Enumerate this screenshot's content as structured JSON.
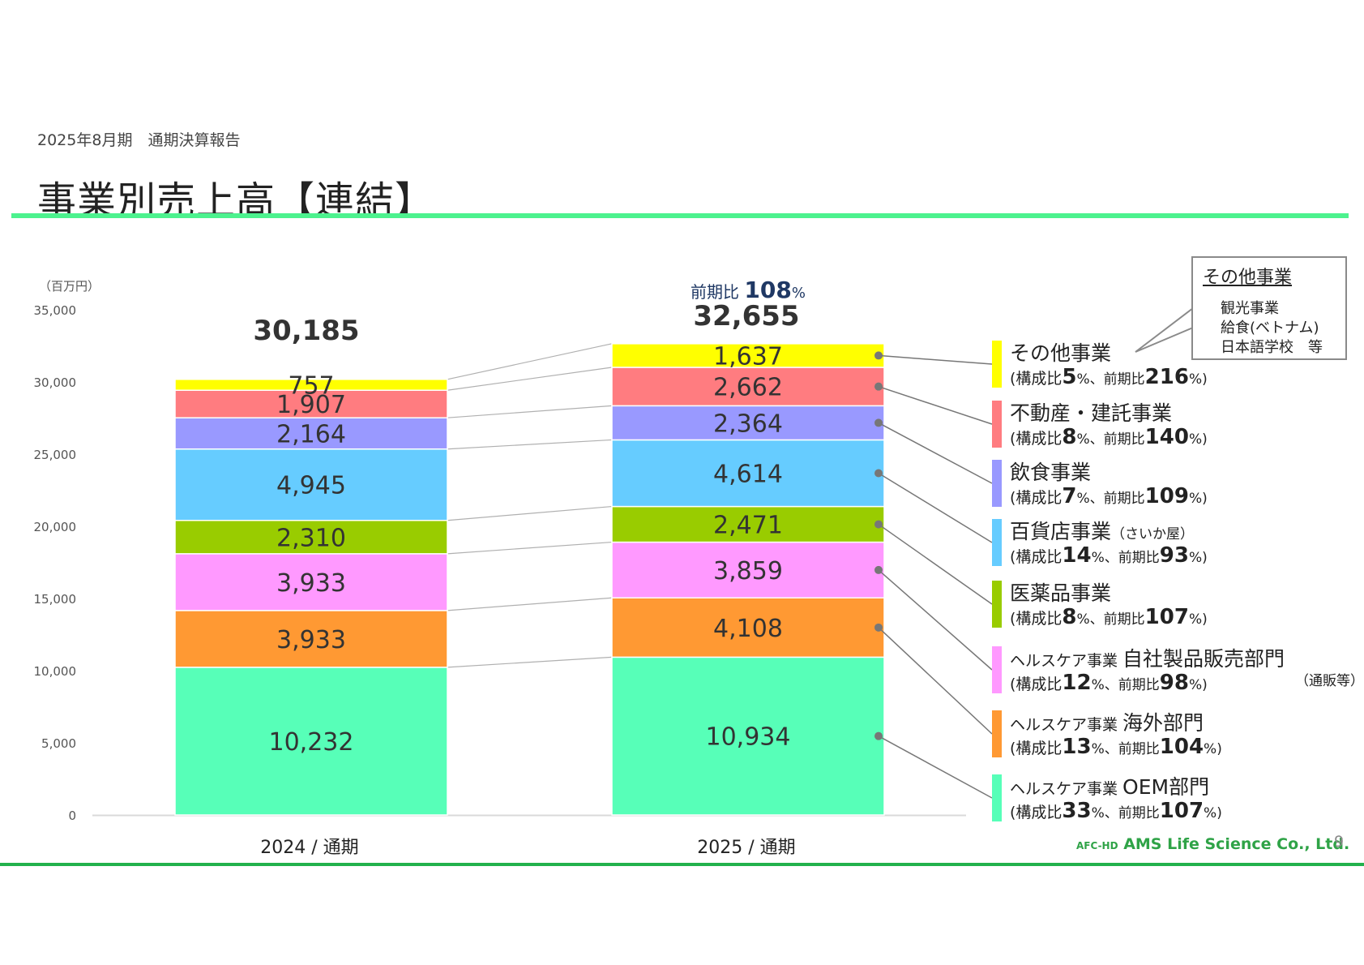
{
  "header": {
    "subtitle": "2025年8月期　通期決算報告",
    "title": "事業別売上高【連結】"
  },
  "chart_data": {
    "type": "bar",
    "stacked": true,
    "unit_label": "（百万円）",
    "ylim": [
      0,
      35000
    ],
    "yticks": [
      "0",
      "5,000",
      "10,000",
      "15,000",
      "20,000",
      "25,000",
      "30,000",
      "35,000"
    ],
    "categories": [
      "2024 / 通期",
      "2025 / 通期"
    ],
    "totals": [
      "30,185",
      "32,655"
    ],
    "growth": {
      "prefix": "前期比 ",
      "value": "108",
      "unit": "%"
    },
    "series": [
      {
        "name": "ヘルスケア事業 OEM部門",
        "color": "#57ffb8",
        "values": [
          10232,
          10934
        ],
        "labels": [
          "10,232",
          "10,934"
        ]
      },
      {
        "name": "ヘルスケア事業 海外部門",
        "color": "#ff9933",
        "values": [
          3933,
          4108
        ],
        "labels": [
          "3,933",
          "4,108"
        ]
      },
      {
        "name": "ヘルスケア事業 自社製品販売部門",
        "color": "#ff99ff",
        "values": [
          3933,
          3859
        ],
        "labels": [
          "3,933",
          "3,859"
        ]
      },
      {
        "name": "医薬品事業",
        "color": "#99cc00",
        "values": [
          2310,
          2471
        ],
        "labels": [
          "2,310",
          "2,471"
        ]
      },
      {
        "name": "百貨店事業",
        "color": "#66ccff",
        "values": [
          4945,
          4614
        ],
        "labels": [
          "4,945",
          "4,614"
        ]
      },
      {
        "name": "飲食事業",
        "color": "#9999ff",
        "values": [
          2164,
          2364
        ],
        "labels": [
          "2,164",
          "2,364"
        ]
      },
      {
        "name": "不動産・建託事業",
        "color": "#ff7c80",
        "values": [
          1907,
          2662
        ],
        "labels": [
          "1,907",
          "2,662"
        ]
      },
      {
        "name": "その他事業",
        "color": "#ffff00",
        "values": [
          757,
          1637
        ],
        "labels": [
          "757",
          "1,637"
        ]
      }
    ]
  },
  "legend": [
    {
      "color": "#ffff00",
      "prefix": "",
      "name": "その他事業",
      "note": "",
      "extra": "",
      "share": "5",
      "yoy": "216"
    },
    {
      "color": "#ff7c80",
      "prefix": "",
      "name": "不動産・建託事業",
      "note": "",
      "extra": "",
      "share": "8",
      "yoy": "140"
    },
    {
      "color": "#9999ff",
      "prefix": "",
      "name": "飲食事業",
      "note": "",
      "extra": "",
      "share": "7",
      "yoy": "109"
    },
    {
      "color": "#66ccff",
      "prefix": "",
      "name": "百貨店事業",
      "note": "（さいか屋）",
      "extra": "",
      "share": "14",
      "yoy": "93"
    },
    {
      "color": "#99cc00",
      "prefix": "",
      "name": "医薬品事業",
      "note": "",
      "extra": "",
      "share": "8",
      "yoy": "107"
    },
    {
      "color": "#ff99ff",
      "prefix": "ヘルスケア事業 ",
      "name": "自社製品販売部門",
      "note": "",
      "extra": "（通販等）",
      "share": "12",
      "yoy": "98"
    },
    {
      "color": "#ff9933",
      "prefix": "ヘルスケア事業 ",
      "name": "海外部門",
      "note": "",
      "extra": "",
      "share": "13",
      "yoy": "104"
    },
    {
      "color": "#57ffb8",
      "prefix": "ヘルスケア事業 ",
      "name": "OEM部門",
      "note": "",
      "extra": "",
      "share": "33",
      "yoy": "107"
    }
  ],
  "legend_text": {
    "open": "(構成比",
    "pct_mid": "%、前期比",
    "pct_end": "%)"
  },
  "callout": {
    "title": "その他事業",
    "items": [
      "観光事業",
      "給食(ベトナム)",
      "日本語学校　等"
    ]
  },
  "footer": {
    "logo_small": "AFC-HD",
    "logo_main": "AMS Life Science Co., Ltd.",
    "page": "9"
  }
}
